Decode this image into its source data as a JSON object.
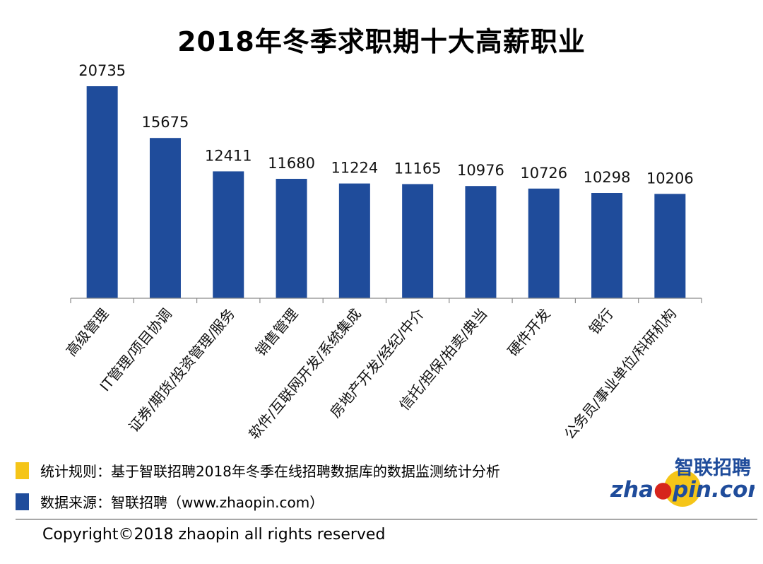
{
  "chart_data": {
    "type": "bar",
    "title": "2018年冬季求职期十大高薪职业",
    "categories": [
      "高级管理",
      "IT管理/项目协调",
      "证券/期货/投资管理/服务",
      "销售管理",
      "软件/互联网开发/系统集成",
      "房地产开发/经纪/中介",
      "信托/担保/拍卖/典当",
      "硬件开发",
      "银行",
      "公务员/事业单位/科研机构"
    ],
    "values": [
      20735,
      15675,
      12411,
      11680,
      11224,
      11165,
      10976,
      10726,
      10298,
      10206
    ],
    "ylim": [
      0,
      20735
    ],
    "grid": false,
    "bar_color": "#1f4c9b"
  },
  "legend": {
    "rule": {
      "color": "#f5c518",
      "text": "统计规则：基于智联招聘2018年冬季在线招聘数据库的数据监测统计分析"
    },
    "source": {
      "color": "#1f4c9b",
      "text": "数据来源：智联招聘（www.zhaopin.com）"
    }
  },
  "copyright": "Copyright©2018 zhaopin all rights reserved",
  "logo": {
    "cn": "智联招聘",
    "en_left": "zha",
    "en_mid": "pin",
    "en_right": ".com"
  }
}
